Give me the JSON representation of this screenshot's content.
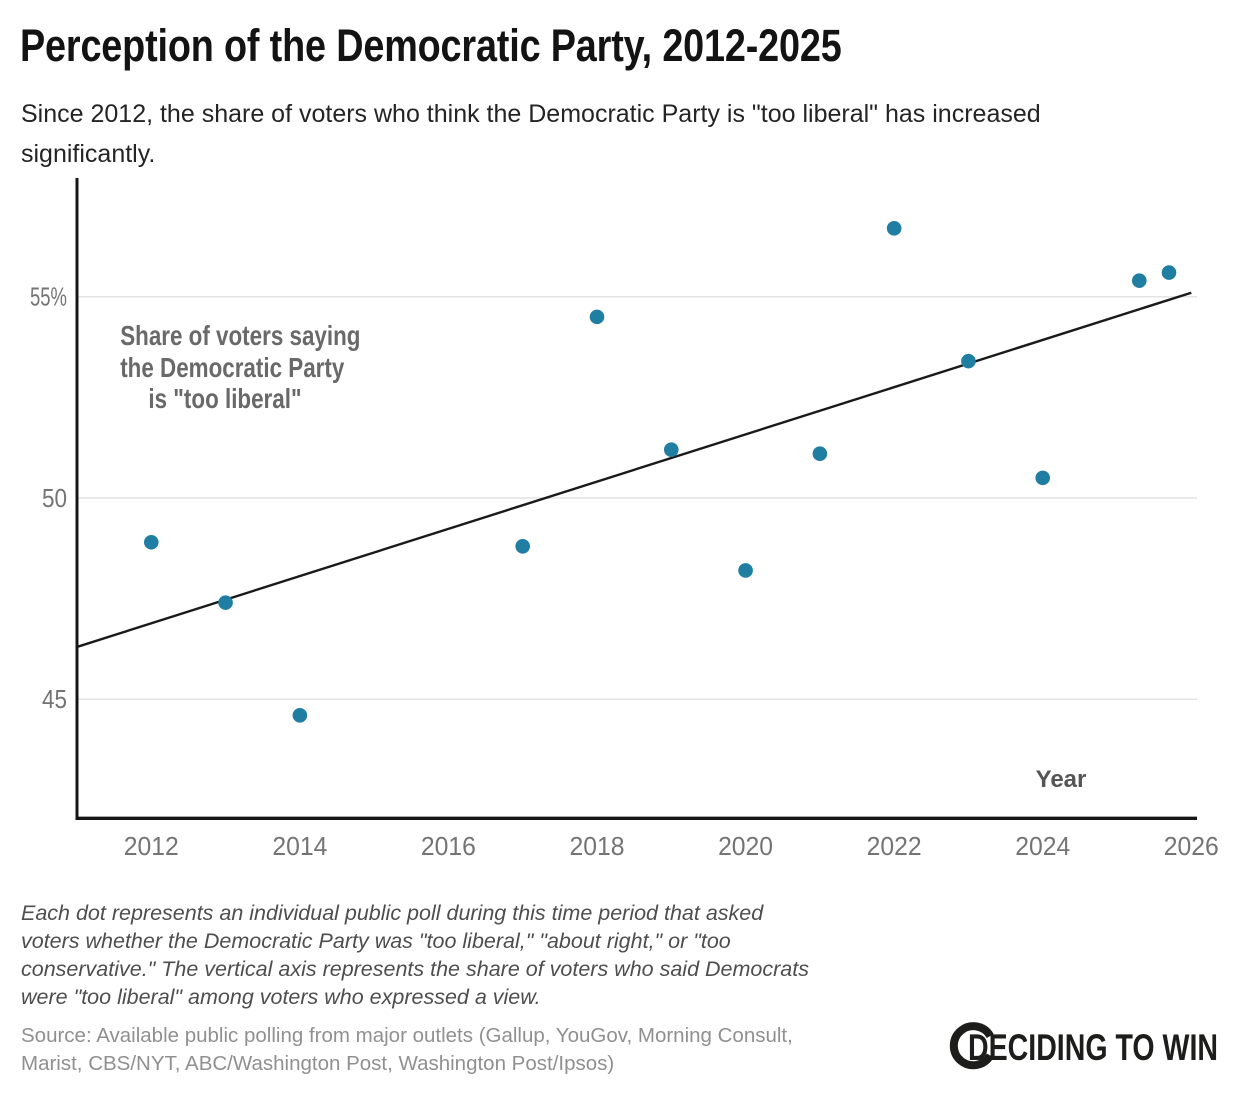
{
  "header": {
    "title": "Perception of the Democratic Party, 2012-2025",
    "subtitle_lines": [
      "Since 2012, the share of voters who think the Democratic Party is \"too liberal\" has increased",
      "significantly."
    ]
  },
  "chart_data": {
    "type": "scatter",
    "title": "Perception of the Democratic Party, 2012-2025",
    "xlabel": "Year",
    "ylabel": "Share of voters saying the Democratic Party is \"too liberal\"",
    "annotation_lines": [
      "Share of voters saying",
      "the Democratic Party",
      "is \"too liberal\""
    ],
    "points": [
      [
        2012.0,
        48.9
      ],
      [
        2013.0,
        47.4
      ],
      [
        2014.0,
        44.6
      ],
      [
        2017.0,
        48.8
      ],
      [
        2018.0,
        54.5
      ],
      [
        2019.0,
        51.2
      ],
      [
        2020.0,
        48.2
      ],
      [
        2021.0,
        51.1
      ],
      [
        2022.0,
        56.7
      ],
      [
        2023.0,
        53.4
      ],
      [
        2024.0,
        50.5
      ],
      [
        2025.3,
        55.4
      ],
      [
        2025.7,
        55.6
      ]
    ],
    "trend_line": {
      "x1": 2011.0,
      "y1": 46.3,
      "x2": 2026.0,
      "y2": 55.1
    },
    "x_ticks": [
      2012,
      2014,
      2016,
      2018,
      2020,
      2022,
      2024,
      2026
    ],
    "y_ticks": [
      {
        "value": 55,
        "label": "55%"
      },
      {
        "value": 50,
        "label": "50"
      },
      {
        "value": 45,
        "label": "45"
      }
    ],
    "xlim": [
      2011,
      2026.05
    ],
    "ylim": [
      42,
      57.95
    ],
    "grid": "horizontal",
    "legend": "none",
    "colors": {
      "dot": "#1f7ea1",
      "trend": "#1a1a1a",
      "grid": "#e4e4e4",
      "axis": "#161616",
      "tick_text": "#747474"
    }
  },
  "footnote_lines": [
    "Each dot represents an individual public poll during this time period that asked",
    "voters whether the Democratic Party was \"too liberal,\" \"about right,\" or \"too",
    "conservative.\" The vertical axis represents the share of voters who said Democrats",
    "were \"too liberal\" among voters who expressed a view."
  ],
  "source_lines": [
    "Source: Available public polling from major outlets (Gallup, YouGov, Morning Consult,",
    "Marist, CBS/NYT, ABC/Washington Post, Washington Post/Ipsos)"
  ],
  "logo": {
    "text": "DECIDING TO WIN"
  }
}
